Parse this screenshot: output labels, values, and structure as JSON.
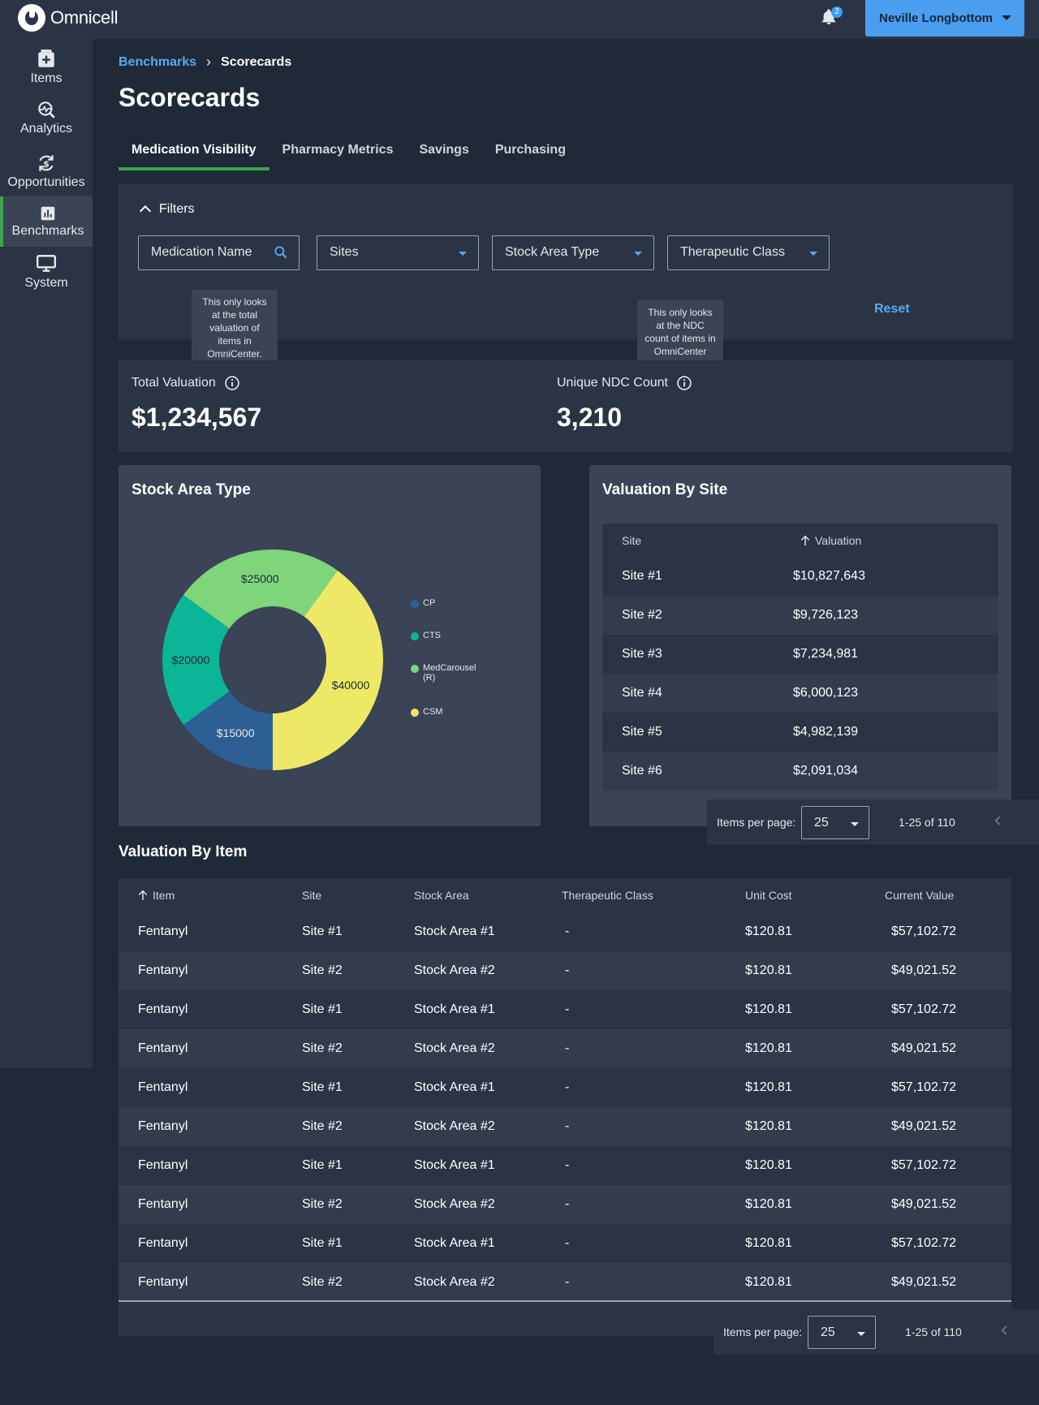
{
  "app": {
    "brand": "Omnicell",
    "notification_count": "2",
    "user_name": "Neville Longbottom"
  },
  "sidebar": {
    "items": [
      {
        "label": "Items",
        "icon": "plus-box-icon"
      },
      {
        "label": "Analytics",
        "icon": "analytics-icon"
      },
      {
        "label": "Opportunities",
        "icon": "opportunities-icon"
      },
      {
        "label": "Benchmarks",
        "icon": "bar-chart-icon",
        "active": true
      },
      {
        "label": "System",
        "icon": "monitor-icon"
      }
    ]
  },
  "breadcrumb": {
    "parent": "Benchmarks",
    "current": "Scorecards"
  },
  "page": {
    "title": "Scorecards"
  },
  "tabs": [
    "Medication Visibility",
    "Pharmacy Metrics",
    "Savings",
    "Purchasing"
  ],
  "filters": {
    "header": "Filters",
    "medication_placeholder": "Medication Name",
    "sites": "Sites",
    "stock_area_type": "Stock Area Type",
    "therapeutic_class": "Therapeutic Class",
    "reset": "Reset"
  },
  "tooltips": {
    "valuation": "This only looks at the total valuation of items in OmniCenter.",
    "ndc": "This only looks at the NDC count of items in OmniCenter"
  },
  "kpis": {
    "total_valuation_label": "Total Valuation",
    "total_valuation_value": "$1,234,567",
    "ndc_label": "Unique NDC Count",
    "ndc_value": "3,210"
  },
  "stock_area_card": {
    "title": "Stock Area Type"
  },
  "chart_data": {
    "type": "pie",
    "title": "Stock Area Type",
    "categories": [
      "CP",
      "CTS",
      "MedCarousel (R)",
      "CSM"
    ],
    "values": [
      15000,
      20000,
      25000,
      40000
    ],
    "data_labels": [
      "$15000",
      "$20000",
      "$25000",
      "$40000"
    ],
    "colors": [
      "#2d5f95",
      "#0bb597",
      "#7fd57a",
      "#ede966"
    ],
    "legend_position": "right"
  },
  "site_card": {
    "title": "Valuation By Site",
    "columns": [
      "Site",
      "Valuation"
    ],
    "rows": [
      [
        "Site #1",
        "$10,827,643"
      ],
      [
        "Site #2",
        "$9,726,123"
      ],
      [
        "Site #3",
        "$7,234,981"
      ],
      [
        "Site #4",
        "$6,000,123"
      ],
      [
        "Site #5",
        "$4,982,139"
      ],
      [
        "Site #6",
        "$2,091,034"
      ]
    ]
  },
  "pager": {
    "label": "Items per page:",
    "per_page": "25",
    "range": "1-25 of 110"
  },
  "item_section": {
    "title": "Valuation By Item",
    "columns": [
      "Item",
      "Site",
      "Stock Area",
      "Therapeutic Class",
      "Unit Cost",
      "Current Value"
    ],
    "rows": [
      [
        "Fentanyl",
        "Site #1",
        "Stock Area #1",
        "-",
        "$120.81",
        "$57,102.72"
      ],
      [
        "Fentanyl",
        "Site #2",
        "Stock Area #2",
        "-",
        "$120.81",
        "$49,021.52"
      ],
      [
        "Fentanyl",
        "Site #1",
        "Stock Area #1",
        "-",
        "$120.81",
        "$57,102.72"
      ],
      [
        "Fentanyl",
        "Site #2",
        "Stock Area #2",
        "-",
        "$120.81",
        "$49,021.52"
      ],
      [
        "Fentanyl",
        "Site #1",
        "Stock Area #1",
        "-",
        "$120.81",
        "$57,102.72"
      ],
      [
        "Fentanyl",
        "Site #2",
        "Stock Area #2",
        "-",
        "$120.81",
        "$49,021.52"
      ],
      [
        "Fentanyl",
        "Site #1",
        "Stock Area #1",
        "-",
        "$120.81",
        "$57,102.72"
      ],
      [
        "Fentanyl",
        "Site #2",
        "Stock Area #2",
        "-",
        "$120.81",
        "$49,021.52"
      ],
      [
        "Fentanyl",
        "Site #1",
        "Stock Area #1",
        "-",
        "$120.81",
        "$57,102.72"
      ],
      [
        "Fentanyl",
        "Site #2",
        "Stock Area #2",
        "-",
        "$120.81",
        "$49,021.52"
      ]
    ]
  }
}
